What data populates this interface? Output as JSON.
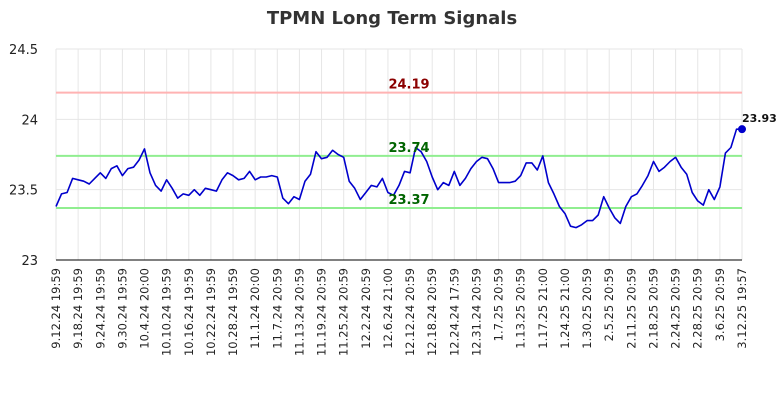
{
  "chart_data": {
    "type": "line",
    "title": "TPMN Long Term Signals",
    "ylim": [
      23,
      24.5
    ],
    "y_ticks": [
      23,
      23.5,
      24,
      24.5
    ],
    "y_tick_labels": [
      "23",
      "23.5",
      "24",
      "24.5"
    ],
    "grid": true,
    "x_tick_labels": [
      "9.12.24 19:59",
      "9.18.24 19:59",
      "9.24.24 19:59",
      "9.30.24 19:59",
      "10.4.24 20:00",
      "10.10.24 19:59",
      "10.16.24 19:59",
      "10.22.24 19:59",
      "10.28.24 19:59",
      "11.1.24 20:00",
      "11.7.24 20:59",
      "11.13.24 20:59",
      "11.19.24 20:59",
      "11.25.24 20:59",
      "12.2.24 20:59",
      "12.6.24 21:00",
      "12.12.24 20:59",
      "12.18.24 20:59",
      "12.24.24 17:59",
      "12.31.24 20:59",
      "1.7.25 20:59",
      "1.13.25 20:59",
      "1.17.25 21:00",
      "1.24.25 21:00",
      "1.30.25 20:59",
      "2.5.25 20:59",
      "2.11.25 20:59",
      "2.18.25 20:59",
      "2.24.25 20:59",
      "2.28.25 20:59",
      "3.6.25 20:59",
      "3.12.25 19:57"
    ],
    "series": [
      {
        "color": "#0000cc",
        "values": [
          23.38,
          23.47,
          23.48,
          23.58,
          23.57,
          23.56,
          23.54,
          23.58,
          23.62,
          23.58,
          23.65,
          23.67,
          23.6,
          23.65,
          23.66,
          23.71,
          23.79,
          23.62,
          23.53,
          23.49,
          23.57,
          23.51,
          23.44,
          23.47,
          23.46,
          23.5,
          23.46,
          23.51,
          23.5,
          23.49,
          23.57,
          23.62,
          23.6,
          23.57,
          23.58,
          23.63,
          23.57,
          23.59,
          23.59,
          23.6,
          23.59,
          23.44,
          23.4,
          23.45,
          23.43,
          23.56,
          23.61,
          23.77,
          23.72,
          23.73,
          23.78,
          23.75,
          23.73,
          23.56,
          23.51,
          23.43,
          23.48,
          23.53,
          23.52,
          23.58,
          23.48,
          23.46,
          23.53,
          23.63,
          23.62,
          23.8,
          23.77,
          23.7,
          23.59,
          23.5,
          23.55,
          23.53,
          23.63,
          23.53,
          23.58,
          23.65,
          23.7,
          23.73,
          23.72,
          23.65,
          23.55,
          23.55,
          23.55,
          23.56,
          23.6,
          23.69,
          23.69,
          23.64,
          23.74,
          23.55,
          23.47,
          23.38,
          23.33,
          23.24,
          23.23,
          23.25,
          23.28,
          23.28,
          23.32,
          23.45,
          23.37,
          23.3,
          23.26,
          23.38,
          23.45,
          23.47,
          23.53,
          23.6,
          23.7,
          23.63,
          23.66,
          23.7,
          23.73,
          23.66,
          23.61,
          23.48,
          23.42,
          23.39,
          23.5,
          23.43,
          23.52,
          23.76,
          23.8,
          23.93,
          23.93
        ]
      }
    ],
    "reference_lines": [
      {
        "value": 24.19,
        "label": "24.19",
        "line_color": "#ffb3b3",
        "label_color": "#8b0000"
      },
      {
        "value": 23.74,
        "label": "23.74",
        "line_color": "#90ee90",
        "label_color": "#006400"
      },
      {
        "value": 23.37,
        "label": "23.37",
        "line_color": "#90ee90",
        "label_color": "#006400"
      }
    ],
    "end_point_label": "23.93"
  }
}
